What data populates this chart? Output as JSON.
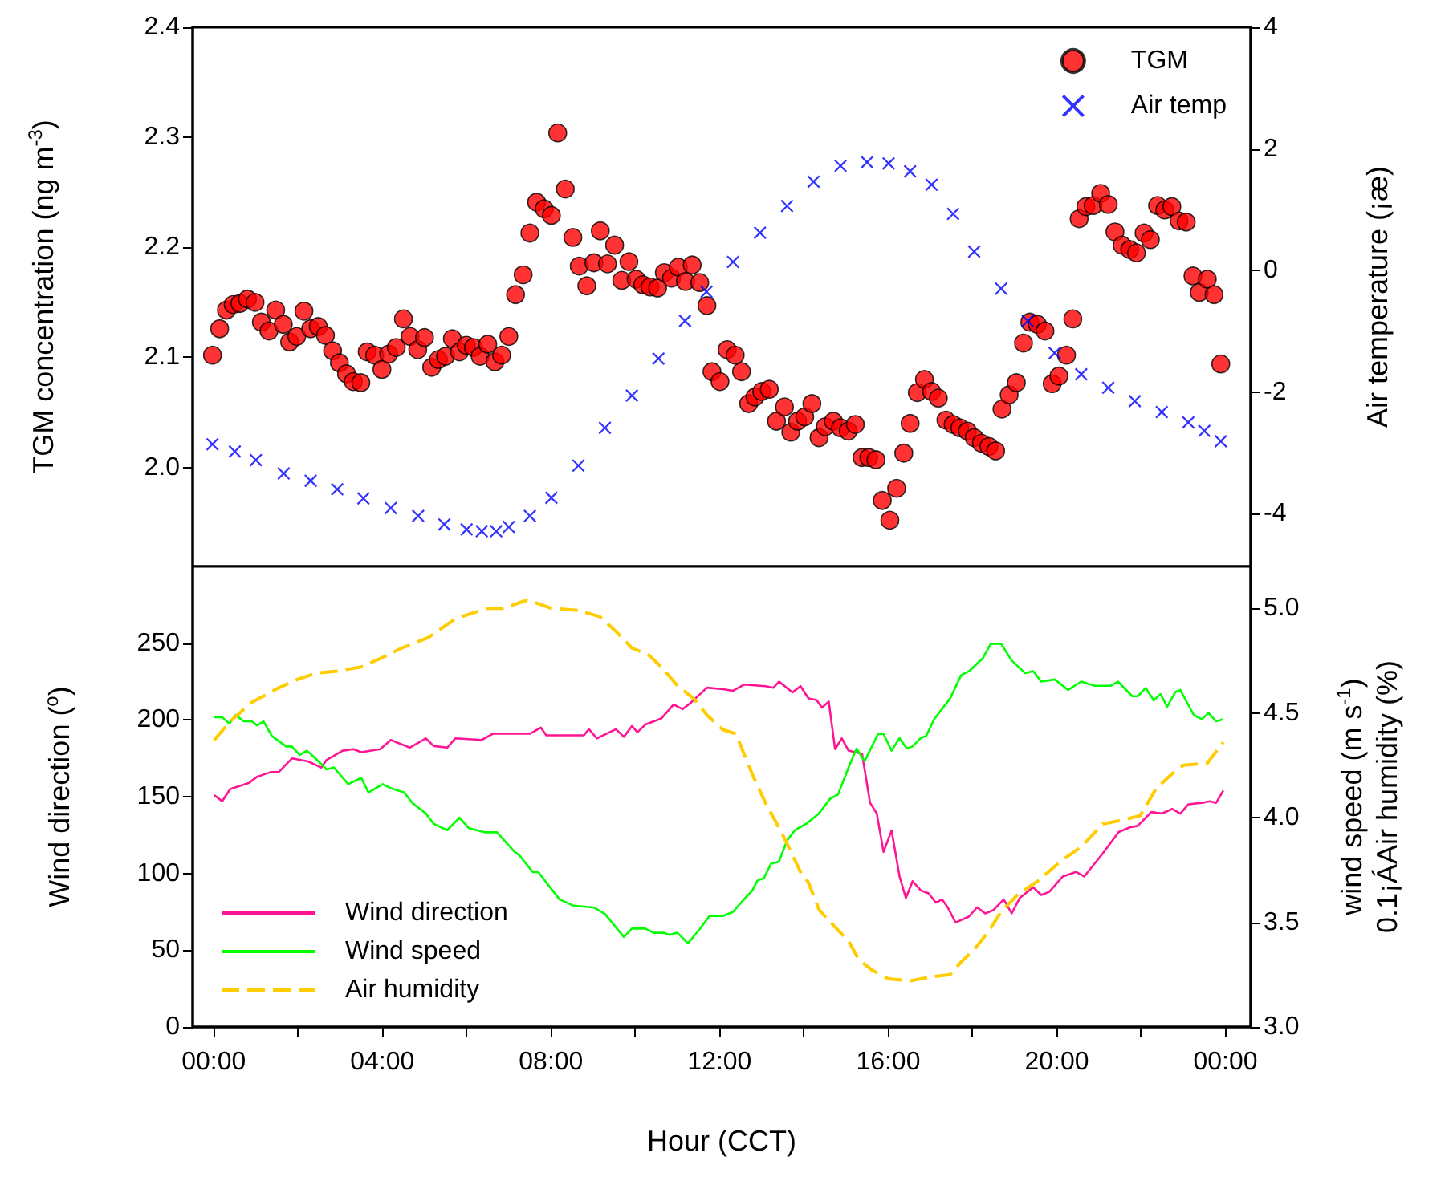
{
  "chart_data": [
    {
      "type": "scatter",
      "ylabel": "TGM concentration (ng m$^{-3}$)",
      "y2label": "Air temperature (¡æ)",
      "xlim": [
        -0.5,
        24.6
      ],
      "ylim": [
        1.91,
        2.4
      ],
      "yticks": [
        {
          "value": 2,
          "label": "2.0"
        },
        2.1,
        2.2,
        2.3,
        2.4
      ],
      "y2lim": [
        -4.87,
        4
      ],
      "y2ticks": [
        -4,
        -2,
        0,
        2,
        4
      ],
      "tick_labels": "y",
      "grid": false,
      "legend": "top right",
      "series": [
        {
          "name": "TGM",
          "color": "#ff0000",
          "marker": "circle",
          "x": [
            -0.03,
            0.14,
            0.3,
            0.46,
            0.62,
            0.8,
            0.98,
            1.13,
            1.31,
            1.47,
            1.65,
            1.8,
            1.97,
            2.14,
            2.3,
            2.48,
            2.65,
            2.82,
            2.98,
            3.15,
            3.31,
            3.49,
            3.64,
            3.82,
            3.99,
            4.15,
            4.33,
            4.5,
            4.66,
            4.84,
            5.0,
            5.17,
            5.33,
            5.5,
            5.66,
            5.83,
            5.99,
            6.16,
            6.32,
            6.5,
            6.67,
            6.83,
            7.0,
            7.16,
            7.34,
            7.5,
            7.66,
            7.84,
            8.01,
            8.16,
            8.34,
            8.52,
            8.67,
            8.85,
            9.02,
            9.17,
            9.34,
            9.51,
            9.68,
            9.85,
            10.02,
            10.18,
            10.35,
            10.53,
            10.69,
            10.86,
            11.02,
            11.19,
            11.35,
            11.53,
            11.7,
            11.82,
            12.01,
            12.18,
            12.37,
            12.52,
            12.69,
            12.84,
            13.0,
            13.18,
            13.35,
            13.54,
            13.69,
            13.85,
            14.02,
            14.19,
            14.36,
            14.51,
            14.7,
            14.87,
            15.05,
            15.22,
            15.38,
            15.54,
            15.71,
            15.86,
            16.04,
            16.2,
            16.37,
            16.52,
            16.69,
            16.86,
            17.03,
            17.19,
            17.37,
            17.54,
            17.7,
            17.88,
            18.04,
            18.21,
            18.39,
            18.55,
            18.7,
            18.87,
            19.04,
            19.21,
            19.36,
            19.54,
            19.72,
            19.89,
            20.05,
            20.23,
            20.38,
            20.53,
            20.69,
            20.86,
            21.04,
            21.22,
            21.38,
            21.55,
            21.73,
            21.89,
            22.07,
            22.22,
            22.39,
            22.56,
            22.73,
            22.9,
            23.07,
            23.23,
            23.38,
            23.57,
            23.73,
            23.89
          ],
          "values": [
            2.102,
            2.126,
            2.143,
            2.148,
            2.149,
            2.153,
            2.15,
            2.132,
            2.124,
            2.143,
            2.13,
            2.114,
            2.119,
            2.142,
            2.126,
            2.128,
            2.12,
            2.106,
            2.095,
            2.085,
            2.078,
            2.077,
            2.105,
            2.102,
            2.089,
            2.103,
            2.109,
            2.135,
            2.119,
            2.107,
            2.118,
            2.091,
            2.098,
            2.101,
            2.117,
            2.105,
            2.111,
            2.109,
            2.101,
            2.112,
            2.096,
            2.102,
            2.119,
            2.157,
            2.175,
            2.213,
            2.241,
            2.235,
            2.229,
            2.304,
            2.253,
            2.209,
            2.183,
            2.165,
            2.186,
            2.215,
            2.185,
            2.202,
            2.17,
            2.187,
            2.171,
            2.166,
            2.164,
            2.163,
            2.177,
            2.172,
            2.182,
            2.169,
            2.184,
            2.168,
            2.147,
            2.087,
            2.078,
            2.107,
            2.102,
            2.087,
            2.058,
            2.064,
            2.069,
            2.071,
            2.042,
            2.055,
            2.032,
            2.042,
            2.046,
            2.058,
            2.027,
            2.037,
            2.042,
            2.036,
            2.033,
            2.039,
            2.009,
            2.009,
            2.007,
            1.97,
            1.952,
            1.981,
            2.013,
            2.04,
            2.068,
            2.08,
            2.069,
            2.063,
            2.043,
            2.039,
            2.036,
            2.033,
            2.027,
            2.022,
            2.019,
            2.015,
            2.053,
            2.066,
            2.077,
            2.113,
            2.132,
            2.13,
            2.124,
            2.076,
            2.083,
            2.102,
            2.135,
            2.226,
            2.237,
            2.238,
            2.249,
            2.239,
            2.214,
            2.202,
            2.198,
            2.195,
            2.213,
            2.207,
            2.238,
            2.234,
            2.237,
            2.224,
            2.223,
            2.174,
            2.159,
            2.171,
            2.157,
            2.094
          ]
        },
        {
          "name": "Air temp",
          "color": "#0000ff",
          "marker": "cross",
          "axis": "y2",
          "x": [
            -0.03,
            0.5,
            1.0,
            1.66,
            2.3,
            2.93,
            3.55,
            4.2,
            4.85,
            5.47,
            6.0,
            6.36,
            6.7,
            7.0,
            7.5,
            8.01,
            8.65,
            9.28,
            9.92,
            10.55,
            11.18,
            11.69,
            12.32,
            12.96,
            13.6,
            14.23,
            14.87,
            15.5,
            16.01,
            16.52,
            17.03,
            17.54,
            18.04,
            18.68,
            19.31,
            19.95,
            20.58,
            21.22,
            21.85,
            22.49,
            23.12,
            23.5,
            23.89
          ],
          "values": [
            -2.86,
            -2.98,
            -3.12,
            -3.34,
            -3.46,
            -3.6,
            -3.75,
            -3.91,
            -4.04,
            -4.18,
            -4.26,
            -4.29,
            -4.29,
            -4.22,
            -4.04,
            -3.74,
            -3.21,
            -2.59,
            -2.06,
            -1.45,
            -0.83,
            -0.35,
            0.14,
            0.62,
            1.06,
            1.46,
            1.72,
            1.78,
            1.76,
            1.63,
            1.41,
            0.93,
            0.31,
            -0.3,
            -0.83,
            -1.36,
            -1.71,
            -1.93,
            -2.15,
            -2.33,
            -2.5,
            -2.64,
            -2.81
          ]
        }
      ]
    },
    {
      "type": "line",
      "ylabel": "Wind direction ($^{o}$)",
      "y2label": "wind speed (m s$^{-1}$)\n0.1¡ÁAir humidity (%)",
      "xlabel": "Hour (CCT)",
      "xlim": [
        -0.5,
        24.6
      ],
      "xticks": [
        {
          "value": 0,
          "label": "00:00"
        },
        {
          "value": 2,
          "label": null
        },
        {
          "value": 4,
          "label": "04:00"
        },
        {
          "value": 6,
          "label": null
        },
        {
          "value": 8,
          "label": "08:00"
        },
        {
          "value": 10,
          "label": null
        },
        {
          "value": 12,
          "label": "12:00"
        },
        {
          "value": 14,
          "label": null
        },
        {
          "value": 16,
          "label": "16:00"
        },
        {
          "value": 18,
          "label": null
        },
        {
          "value": 20,
          "label": "20:00"
        },
        {
          "value": 22,
          "label": null
        },
        {
          "value": 24,
          "label": "00:00"
        }
      ],
      "ylim": [
        0,
        300
      ],
      "yticks": [
        0,
        50,
        100,
        150,
        200,
        250
      ],
      "y2lim": [
        3.0,
        5.2
      ],
      "y2ticks": [
        {
          "value": 3,
          "label": "3.0"
        },
        3.5,
        {
          "value": 4,
          "label": "4.0"
        },
        4.5,
        {
          "value": 5,
          "label": "5.0"
        }
      ],
      "grid": false,
      "legend": "bottom left",
      "series": [
        {
          "name": "Wind direction",
          "color": "#ff1493",
          "line_style": "solid",
          "x": [
            0.01,
            0.2,
            0.39,
            0.84,
            1.03,
            1.35,
            1.54,
            1.86,
            2.24,
            2.55,
            2.68,
            3.06,
            3.31,
            3.5,
            3.95,
            4.2,
            4.65,
            5.03,
            5.22,
            5.54,
            5.73,
            6.36,
            6.62,
            7.5,
            7.76,
            7.89,
            8.78,
            8.9,
            9.09,
            9.54,
            9.73,
            9.92,
            10.05,
            10.24,
            10.62,
            10.91,
            11.12,
            11.31,
            11.7,
            12.08,
            12.32,
            12.58,
            13.09,
            13.28,
            13.41,
            13.73,
            13.92,
            14.11,
            14.3,
            14.43,
            14.59,
            14.74,
            14.9,
            15.06,
            15.38,
            15.57,
            15.73,
            15.89,
            16.08,
            16.27,
            16.42,
            16.58,
            16.77,
            16.96,
            17.13,
            17.28,
            17.41,
            17.6,
            17.92,
            18.11,
            18.3,
            18.49,
            18.74,
            18.93,
            19.12,
            19.44,
            19.63,
            19.82,
            20.14,
            20.46,
            20.65,
            21.09,
            21.47,
            21.73,
            21.92,
            22.24,
            22.49,
            22.74,
            22.93,
            23.12,
            23.44,
            23.63,
            23.78,
            23.95
          ],
          "values": [
            151,
            147,
            155,
            159,
            163,
            166,
            166,
            175,
            173,
            169,
            174,
            180,
            181,
            179,
            181,
            187,
            182,
            188,
            183,
            182,
            188,
            187,
            191,
            191,
            195,
            190,
            190,
            194,
            188,
            194,
            189,
            196,
            192,
            197,
            201,
            210,
            207,
            211,
            221,
            220,
            219,
            223,
            222,
            221,
            225,
            218,
            222,
            214,
            213,
            208,
            212,
            181,
            188,
            180,
            178,
            146,
            139,
            114,
            128,
            98,
            84,
            95,
            89,
            87,
            81,
            83,
            78,
            68,
            72,
            78,
            74,
            76,
            83,
            74,
            84,
            91,
            86,
            88,
            98,
            101,
            98,
            113,
            127,
            130,
            131,
            140,
            139,
            142,
            139,
            145,
            146,
            147,
            146,
            154
          ]
        },
        {
          "name": "Wind speed",
          "color": "#00ff00",
          "line_style": "solid",
          "axis": "y2",
          "x": [
            0.01,
            0.2,
            0.37,
            0.52,
            0.71,
            0.9,
            1.03,
            1.18,
            1.38,
            1.72,
            1.85,
            2.04,
            2.21,
            2.43,
            2.68,
            2.85,
            3.19,
            3.5,
            3.67,
            4.01,
            4.2,
            4.52,
            4.71,
            5.03,
            5.22,
            5.54,
            5.83,
            6.05,
            6.43,
            6.72,
            7.12,
            7.25,
            7.57,
            7.7,
            8.2,
            8.52,
            9.03,
            9.28,
            9.73,
            9.92,
            10.24,
            10.43,
            10.68,
            10.81,
            11.0,
            11.25,
            11.5,
            11.76,
            12.08,
            12.32,
            12.58,
            12.77,
            12.9,
            13.05,
            13.22,
            13.41,
            13.6,
            13.79,
            14.05,
            14.36,
            14.62,
            14.81,
            15.06,
            15.25,
            15.44,
            15.76,
            15.89,
            16.08,
            16.27,
            16.44,
            16.58,
            16.77,
            16.9,
            17.09,
            17.47,
            17.73,
            17.92,
            18.24,
            18.43,
            18.68,
            18.93,
            19.25,
            19.44,
            19.63,
            19.95,
            20.27,
            20.58,
            20.9,
            21.09,
            21.28,
            21.45,
            21.79,
            21.92,
            22.11,
            22.3,
            22.46,
            22.62,
            22.81,
            22.93,
            23.25,
            23.44,
            23.6,
            23.78,
            23.95
          ],
          "values": [
            4.48,
            4.48,
            4.45,
            4.49,
            4.46,
            4.46,
            4.44,
            4.46,
            4.39,
            4.34,
            4.34,
            4.3,
            4.32,
            4.28,
            4.23,
            4.24,
            4.16,
            4.19,
            4.12,
            4.16,
            4.14,
            4.12,
            4.07,
            4.02,
            3.97,
            3.94,
            4.0,
            3.95,
            3.93,
            3.93,
            3.84,
            3.82,
            3.74,
            3.74,
            3.61,
            3.58,
            3.57,
            3.54,
            3.43,
            3.47,
            3.47,
            3.45,
            3.45,
            3.44,
            3.45,
            3.4,
            3.46,
            3.53,
            3.53,
            3.55,
            3.61,
            3.65,
            3.7,
            3.71,
            3.78,
            3.79,
            3.89,
            3.94,
            3.97,
            4.02,
            4.09,
            4.11,
            4.24,
            4.33,
            4.27,
            4.4,
            4.4,
            4.32,
            4.38,
            4.33,
            4.34,
            4.38,
            4.39,
            4.47,
            4.57,
            4.68,
            4.7,
            4.76,
            4.83,
            4.83,
            4.75,
            4.69,
            4.7,
            4.65,
            4.66,
            4.61,
            4.65,
            4.63,
            4.63,
            4.63,
            4.65,
            4.58,
            4.58,
            4.62,
            4.56,
            4.59,
            4.53,
            4.6,
            4.61,
            4.49,
            4.47,
            4.5,
            4.46,
            4.47
          ]
        },
        {
          "name": "Air humidity",
          "color": "#ffcc00",
          "line_style": "dashed",
          "axis": "y2",
          "x": [
            0.01,
            0.39,
            0.9,
            1.54,
            1.98,
            2.43,
            2.93,
            3.5,
            3.95,
            4.46,
            5.09,
            5.73,
            6.49,
            6.87,
            7.44,
            8.01,
            8.65,
            9.16,
            9.54,
            9.92,
            10.3,
            10.62,
            11.0,
            11.38,
            11.7,
            12.08,
            12.39,
            12.77,
            13.09,
            13.47,
            13.92,
            14.11,
            14.36,
            14.68,
            15.06,
            15.31,
            15.63,
            16.01,
            16.52,
            17.03,
            17.47,
            17.73,
            18.04,
            18.36,
            18.68,
            19.06,
            19.57,
            20.08,
            20.58,
            21.09,
            21.6,
            21.98,
            22.36,
            22.74,
            23.0,
            23.57,
            23.95
          ],
          "values": [
            4.37,
            4.46,
            4.55,
            4.62,
            4.66,
            4.69,
            4.7,
            4.72,
            4.76,
            4.81,
            4.86,
            4.95,
            5.0,
            5.0,
            5.04,
            5.0,
            4.99,
            4.96,
            4.89,
            4.81,
            4.78,
            4.72,
            4.63,
            4.57,
            4.49,
            4.42,
            4.4,
            4.21,
            4.07,
            3.93,
            3.74,
            3.69,
            3.56,
            3.49,
            3.41,
            3.32,
            3.27,
            3.23,
            3.22,
            3.24,
            3.25,
            3.31,
            3.37,
            3.45,
            3.55,
            3.63,
            3.7,
            3.79,
            3.86,
            3.97,
            3.99,
            4.01,
            4.14,
            4.21,
            4.25,
            4.26,
            4.36
          ]
        }
      ]
    }
  ]
}
